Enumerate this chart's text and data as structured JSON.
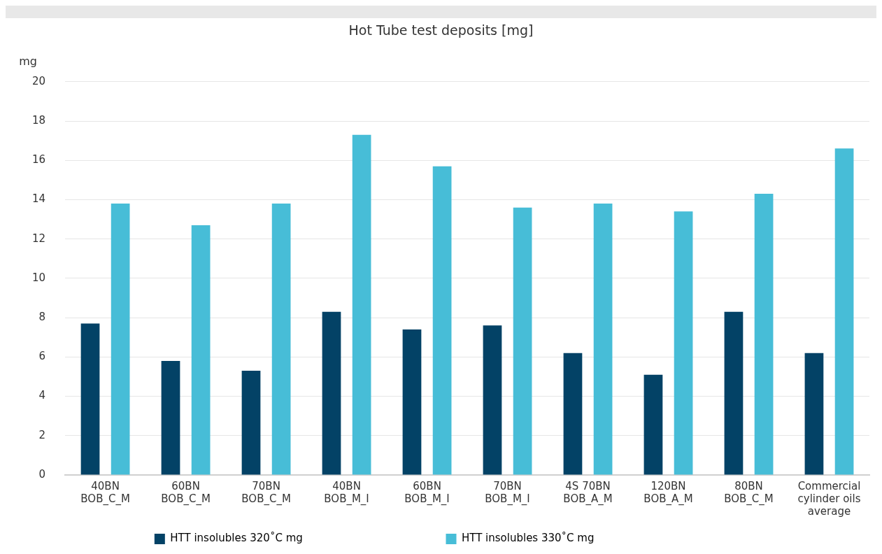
{
  "chart_data": {
    "type": "bar",
    "title": "Hot Tube test deposits [mg]",
    "ylabel": "mg",
    "categories": [
      "40BN\nBOB_C_M",
      "60BN\nBOB_C_M",
      "70BN\nBOB_C_M",
      "40BN\nBOB_M_I",
      "60BN\nBOB_M_I",
      "70BN\nBOB_M_I",
      "4S 70BN\nBOB_A_M",
      "120BN\nBOB_A_M",
      "80BN\nBOB_C_M",
      "Commercial\ncylinder oils\naverage"
    ],
    "series": [
      {
        "name": "HTT insolubles 320˚C mg",
        "color": "#034266",
        "values": [
          7.7,
          5.8,
          5.3,
          8.3,
          7.4,
          7.6,
          6.2,
          5.1,
          8.3,
          6.2
        ]
      },
      {
        "name": "HTT insolubles 330˚C mg",
        "color": "#47bdd7",
        "values": [
          13.8,
          12.7,
          13.8,
          17.3,
          15.7,
          13.6,
          13.8,
          13.4,
          14.3,
          16.6
        ]
      }
    ],
    "ylim": [
      0,
      20
    ],
    "yticks": [
      0,
      2,
      4,
      6,
      8,
      10,
      12,
      14,
      16,
      18,
      20
    ],
    "grid": "y",
    "legend": "bottom"
  }
}
